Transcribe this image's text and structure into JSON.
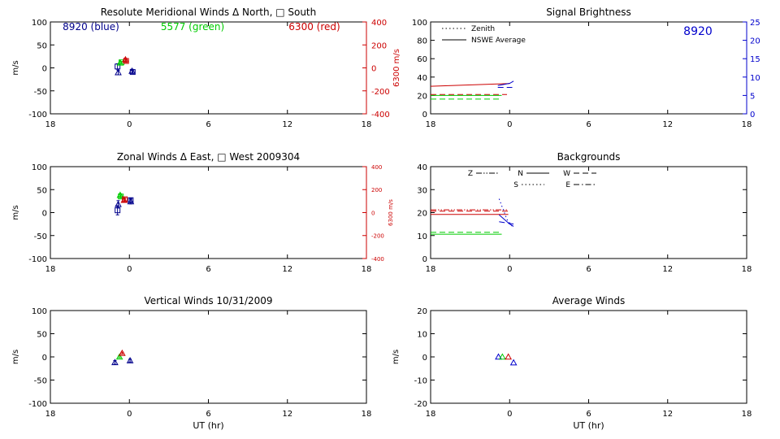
{
  "chart_data": [
    {
      "id": "meridional",
      "type": "scatter",
      "title": "Resolute Meridional Winds Δ North, □ South",
      "xlabel": "",
      "ylabel": "m/s",
      "ylabel_right": "6300 m/s",
      "x_ticks": [
        "18",
        "0",
        "6",
        "12",
        "18"
      ],
      "x_range_hours_from_18UT": [
        0,
        24
      ],
      "ylim": [
        -100,
        100
      ],
      "y_ticks": [
        100,
        50,
        0,
        -50,
        -100
      ],
      "y2lim": [
        -400,
        400
      ],
      "y2_ticks": [
        400,
        200,
        0,
        -200,
        -400
      ],
      "y2_color": "#cc0000",
      "annotations": [
        {
          "text": "8920 (blue)",
          "color": "#00008b"
        },
        {
          "text": "5577 (green)",
          "color": "#00cc00"
        },
        {
          "text": "6300 (red)",
          "color": "#cc0000"
        }
      ],
      "series": [
        {
          "color": "#00008b",
          "points": [
            {
              "x": -0.9,
              "y": 3,
              "err": 6,
              "marker": "square"
            },
            {
              "x": -0.85,
              "y": -10,
              "err": 5,
              "marker": "triangle"
            },
            {
              "x": 0.2,
              "y": -7,
              "err": 4,
              "marker": "triangle"
            },
            {
              "x": 0.25,
              "y": -9,
              "err": 3,
              "marker": "square"
            }
          ]
        },
        {
          "color": "#00cc00",
          "points": [
            {
              "x": -0.7,
              "y": 11,
              "err": 2,
              "marker": "triangle"
            },
            {
              "x": -0.6,
              "y": 12,
              "err": 2,
              "marker": "square"
            }
          ]
        },
        {
          "color": "#cc0000",
          "points": [
            {
              "x": -0.3,
              "y": 18,
              "err": 3,
              "marker": "triangle"
            },
            {
              "x": -0.25,
              "y": 15,
              "err": 3,
              "marker": "square"
            }
          ]
        }
      ]
    },
    {
      "id": "zonal",
      "type": "scatter",
      "title": "Zonal Winds Δ East, □ West 2009304",
      "xlabel": "",
      "ylabel": "m/s",
      "ylabel_right": "6300 m/s",
      "x_ticks": [
        "18",
        "0",
        "6",
        "12",
        "18"
      ],
      "x_range_hours_from_18UT": [
        0,
        24
      ],
      "ylim": [
        -100,
        100
      ],
      "y_ticks": [
        100,
        50,
        0,
        -50,
        -100
      ],
      "y2lim": [
        -400,
        400
      ],
      "y2_ticks": [
        400,
        200,
        0,
        -200,
        -400
      ],
      "y2_color": "#cc0000",
      "series": [
        {
          "color": "#00008b",
          "points": [
            {
              "x": -0.9,
              "y": 5,
              "err": 10,
              "marker": "square"
            },
            {
              "x": -0.85,
              "y": 18,
              "err": 8,
              "marker": "triangle"
            },
            {
              "x": 0.1,
              "y": 24,
              "err": 5,
              "marker": "triangle"
            },
            {
              "x": 0.1,
              "y": 27,
              "err": 4,
              "marker": "square"
            }
          ]
        },
        {
          "color": "#00cc00",
          "points": [
            {
              "x": -0.7,
              "y": 38,
              "err": 3,
              "marker": "triangle"
            },
            {
              "x": -0.65,
              "y": 35,
              "err": 3,
              "marker": "square"
            }
          ]
        },
        {
          "color": "#cc0000",
          "points": [
            {
              "x": -0.4,
              "y": 27,
              "err": 3,
              "marker": "triangle"
            },
            {
              "x": -0.35,
              "y": 29,
              "err": 3,
              "marker": "square"
            }
          ]
        }
      ]
    },
    {
      "id": "vertical",
      "type": "scatter",
      "title": "Vertical Winds 10/31/2009",
      "xlabel": "UT (hr)",
      "ylabel": "m/s",
      "x_ticks": [
        "18",
        "0",
        "6",
        "12",
        "18"
      ],
      "x_range_hours_from_18UT": [
        0,
        24
      ],
      "ylim": [
        -100,
        100
      ],
      "y_ticks": [
        100,
        50,
        0,
        -50,
        -100
      ],
      "series": [
        {
          "color": "#00008b",
          "points": [
            {
              "x": -1.1,
              "y": -12,
              "err": 4,
              "marker": "triangle"
            },
            {
              "x": 0.05,
              "y": -8,
              "err": 3,
              "marker": "triangle"
            }
          ]
        },
        {
          "color": "#00cc00",
          "points": [
            {
              "x": -0.75,
              "y": 0,
              "err": 2,
              "marker": "triangle"
            }
          ]
        },
        {
          "color": "#cc0000",
          "points": [
            {
              "x": -0.55,
              "y": 8,
              "err": 2,
              "marker": "triangle"
            }
          ]
        }
      ]
    },
    {
      "id": "brightness",
      "type": "line",
      "title": "Signal Brightness",
      "xlabel": "",
      "ylabel": "",
      "x_ticks": [
        "18",
        "0",
        "6",
        "12",
        "18"
      ],
      "x_range_hours_from_18UT": [
        0,
        24
      ],
      "ylim": [
        0,
        100
      ],
      "y_ticks": [
        100,
        80,
        60,
        40,
        20,
        0
      ],
      "y2lim": [
        0,
        25
      ],
      "y2_ticks": [
        25,
        20,
        15,
        10,
        5,
        0
      ],
      "y2_color": "#0000cc",
      "annotation": {
        "text": "8920",
        "color": "#0000cc"
      },
      "legend": [
        {
          "label": "Zenith",
          "dash": "dot"
        },
        {
          "label": "NSWE Average",
          "dash": "solid"
        }
      ],
      "legend_position": "top-left",
      "series": [
        {
          "color": "#cc0000",
          "dash": "solid",
          "axis": "left",
          "x": [
            -6,
            0
          ],
          "y": [
            30,
            33
          ]
        },
        {
          "color": "#cc0000",
          "dash": "dash",
          "axis": "left",
          "x": [
            -6,
            -0.2
          ],
          "y": [
            21,
            21
          ]
        },
        {
          "color": "#00cc00",
          "dash": "solid",
          "axis": "left",
          "x": [
            -6,
            -0.6
          ],
          "y": [
            20,
            20
          ]
        },
        {
          "color": "#00cc00",
          "dash": "dash",
          "axis": "left",
          "x": [
            -6,
            -0.6
          ],
          "y": [
            16,
            16
          ]
        },
        {
          "color": "#0000cc",
          "dash": "solid",
          "axis": "right",
          "x": [
            -0.9,
            0,
            0.3
          ],
          "y": [
            7.7,
            8.3,
            8.9
          ]
        },
        {
          "color": "#0000cc",
          "dash": "dash",
          "axis": "right",
          "x": [
            -0.9,
            0.2
          ],
          "y": [
            7.2,
            7.2
          ]
        }
      ]
    },
    {
      "id": "backgrounds",
      "type": "line",
      "title": "Backgrounds",
      "xlabel": "",
      "ylabel": "",
      "x_ticks": [
        "18",
        "0",
        "6",
        "12",
        "18"
      ],
      "x_range_hours_from_18UT": [
        0,
        24
      ],
      "ylim": [
        0,
        40
      ],
      "y_ticks": [
        40,
        30,
        20,
        10,
        0
      ],
      "legend": [
        {
          "label": "Z",
          "dash": "dashdotdot"
        },
        {
          "label": "N",
          "dash": "solid"
        },
        {
          "label": "W",
          "dash": "dash"
        },
        {
          "label": "S",
          "dash": "dot"
        },
        {
          "label": "E",
          "dash": "dashdot"
        }
      ],
      "legend_position": "top-left",
      "series": [
        {
          "color": "#cc0000",
          "dash": "dashdotdot",
          "x": [
            -6,
            -0.1
          ],
          "y": [
            21.2,
            21.2
          ]
        },
        {
          "color": "#cc0000",
          "dash": "dash",
          "x": [
            -6,
            -0.1
          ],
          "y": [
            20.6,
            20.6
          ]
        },
        {
          "color": "#cc0000",
          "dash": "solid",
          "x": [
            -6,
            -0.1
          ],
          "y": [
            19.2,
            19.2
          ]
        },
        {
          "color": "#00cc00",
          "dash": "dash",
          "x": [
            -6,
            -0.6
          ],
          "y": [
            11.4,
            11.4
          ]
        },
        {
          "color": "#00cc00",
          "dash": "solid",
          "x": [
            -6,
            -0.6
          ],
          "y": [
            10.6,
            10.6
          ]
        },
        {
          "color": "#0000cc",
          "dash": "dot",
          "x": [
            -0.8,
            -0.2,
            0.2
          ],
          "y": [
            26,
            17,
            14
          ]
        },
        {
          "color": "#0000cc",
          "dash": "solid",
          "x": [
            -0.8,
            0,
            0.3
          ],
          "y": [
            19,
            15,
            14
          ]
        },
        {
          "color": "#0000cc",
          "dash": "dash",
          "x": [
            -0.8,
            0.3
          ],
          "y": [
            16,
            15
          ]
        }
      ]
    },
    {
      "id": "average",
      "type": "scatter",
      "title": "Average Winds",
      "xlabel": "UT (hr)",
      "ylabel": "m/s",
      "x_ticks": [
        "18",
        "0",
        "6",
        "12",
        "18"
      ],
      "x_range_hours_from_18UT": [
        0,
        24
      ],
      "ylim": [
        -20,
        20
      ],
      "y_ticks": [
        20,
        10,
        0,
        -10,
        -20
      ],
      "series": [
        {
          "color": "#0000cc",
          "points": [
            {
              "x": -0.85,
              "y": 0,
              "marker": "triangle"
            },
            {
              "x": 0.3,
              "y": -2.5,
              "marker": "triangle"
            }
          ]
        },
        {
          "color": "#00cc00",
          "points": [
            {
              "x": -0.55,
              "y": 0,
              "marker": "triangle"
            }
          ]
        },
        {
          "color": "#cc0000",
          "points": [
            {
              "x": -0.1,
              "y": 0,
              "marker": "triangle"
            }
          ]
        }
      ]
    }
  ]
}
